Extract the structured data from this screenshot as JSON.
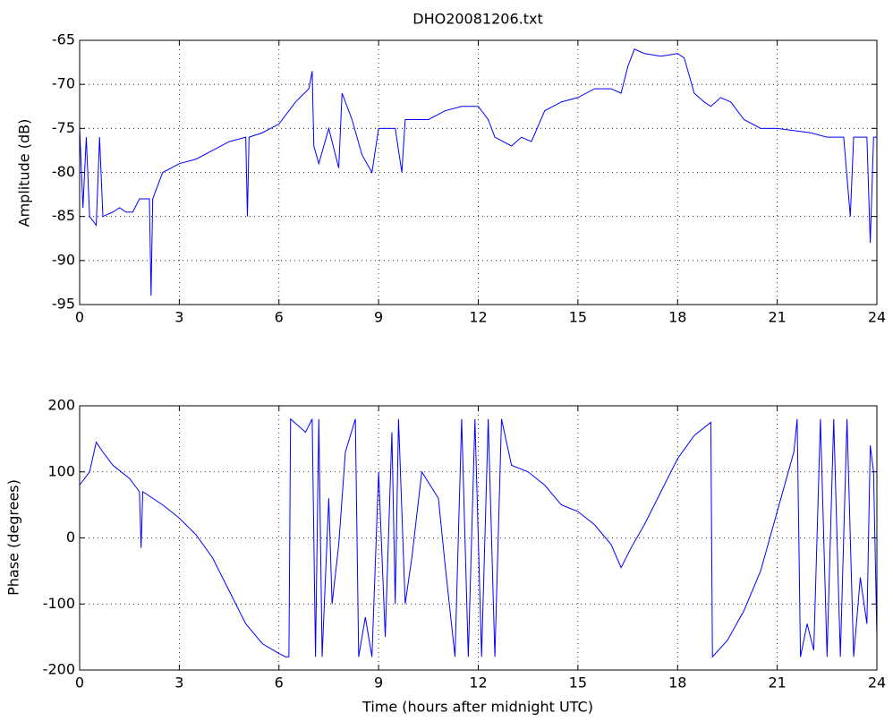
{
  "chart_data": [
    {
      "type": "line",
      "title": "DHO20081206.txt",
      "ylabel": "Amplitude (dB)",
      "color": "#0000ff",
      "grid": true,
      "xlim": [
        0,
        24
      ],
      "xticks": [
        0,
        3,
        6,
        9,
        12,
        15,
        18,
        21,
        24
      ],
      "ylim": [
        -95,
        -65
      ],
      "yticks": [
        -95,
        -90,
        -85,
        -80,
        -75,
        -70,
        -65
      ],
      "x": [
        0,
        0.1,
        0.2,
        0.3,
        0.5,
        0.6,
        0.7,
        1.0,
        1.2,
        1.4,
        1.6,
        1.8,
        2.0,
        2.1,
        2.15,
        2.2,
        2.5,
        3.0,
        3.5,
        4.0,
        4.5,
        5.0,
        5.05,
        5.1,
        5.5,
        6.0,
        6.5,
        6.9,
        7.0,
        7.05,
        7.2,
        7.5,
        7.8,
        7.9,
        8.2,
        8.5,
        8.8,
        9.0,
        9.5,
        9.7,
        9.8,
        10.5,
        11,
        11.5,
        12,
        12.3,
        12.5,
        13,
        13.3,
        13.6,
        14,
        14.5,
        15,
        15.5,
        16,
        16.3,
        16.5,
        16.7,
        17,
        17.5,
        18,
        18.2,
        18.5,
        18.8,
        19,
        19.3,
        19.6,
        20,
        20.5,
        21,
        22,
        22.5,
        23,
        23.2,
        23.3,
        23.7,
        23.8,
        23.9,
        24
      ],
      "values": [
        -75,
        -84,
        -76,
        -85,
        -86,
        -76,
        -85,
        -84.5,
        -84,
        -84.5,
        -84.5,
        -83,
        -83,
        -83,
        -94,
        -83,
        -80,
        -79,
        -78.5,
        -77.5,
        -76.5,
        -76,
        -85,
        -76,
        -75.5,
        -74.5,
        -72,
        -70.5,
        -68.5,
        -77,
        -79,
        -75,
        -79.5,
        -71,
        -74,
        -78,
        -80,
        -75,
        -75,
        -80,
        -74,
        -74,
        -73,
        -72.5,
        -72.5,
        -74,
        -76,
        -77,
        -76,
        -76.5,
        -73,
        -72,
        -71.5,
        -70.5,
        -70.5,
        -71,
        -68,
        -66,
        -66.5,
        -66.8,
        -66.5,
        -67,
        -71,
        -72,
        -72.5,
        -71.5,
        -72,
        -74,
        -75,
        -75,
        -75.5,
        -76,
        -76,
        -85,
        -76,
        -76,
        -88,
        -76,
        -76
      ]
    },
    {
      "type": "line",
      "xlabel": "Time (hours after midnight UTC)",
      "ylabel": "Phase (degrees)",
      "color": "#0000ff",
      "grid": true,
      "xlim": [
        0,
        24
      ],
      "xticks": [
        0,
        3,
        6,
        9,
        12,
        15,
        18,
        21,
        24
      ],
      "ylim": [
        -200,
        200
      ],
      "yticks": [
        -200,
        -100,
        0,
        100,
        200
      ],
      "x": [
        0,
        0.3,
        0.5,
        0.7,
        1.0,
        1.5,
        1.8,
        1.85,
        1.9,
        2.5,
        3.0,
        3.5,
        4,
        4.5,
        5,
        5.5,
        6,
        6.2,
        6.3,
        6.35,
        6.8,
        7.0,
        7.1,
        7.2,
        7.3,
        7.5,
        7.6,
        7.8,
        8.0,
        8.3,
        8.4,
        8.6,
        8.8,
        9.0,
        9.2,
        9.4,
        9.5,
        9.6,
        9.8,
        10,
        10.3,
        10.8,
        11,
        11.3,
        11.5,
        11.7,
        11.9,
        12.1,
        12.3,
        12.5,
        12.7,
        13,
        13.5,
        14,
        14.5,
        15,
        15.5,
        16,
        16.3,
        16.6,
        17,
        17.5,
        18,
        18.5,
        19.0,
        19.05,
        19.5,
        20,
        20.5,
        21,
        21.5,
        21.6,
        21.7,
        21.9,
        22.1,
        22.3,
        22.5,
        22.7,
        22.9,
        23.1,
        23.3,
        23.5,
        23.7,
        23.8,
        23.9,
        24
      ],
      "values": [
        80,
        100,
        145,
        130,
        110,
        90,
        70,
        -15,
        70,
        50,
        30,
        5,
        -30,
        -80,
        -130,
        -160,
        -175,
        -180,
        -180,
        180,
        160,
        180,
        -180,
        180,
        -180,
        60,
        -100,
        -10,
        130,
        180,
        -180,
        -120,
        -180,
        100,
        -150,
        160,
        -100,
        180,
        -100,
        -30,
        100,
        60,
        -40,
        -180,
        180,
        -180,
        180,
        -180,
        180,
        -180,
        180,
        110,
        100,
        80,
        50,
        40,
        20,
        -10,
        -45,
        -15,
        20,
        70,
        120,
        155,
        175,
        -180,
        -155,
        -110,
        -50,
        40,
        130,
        180,
        -180,
        -130,
        -170,
        180,
        -180,
        180,
        -180,
        180,
        -180,
        -60,
        -130,
        140,
        100,
        -150
      ]
    }
  ]
}
